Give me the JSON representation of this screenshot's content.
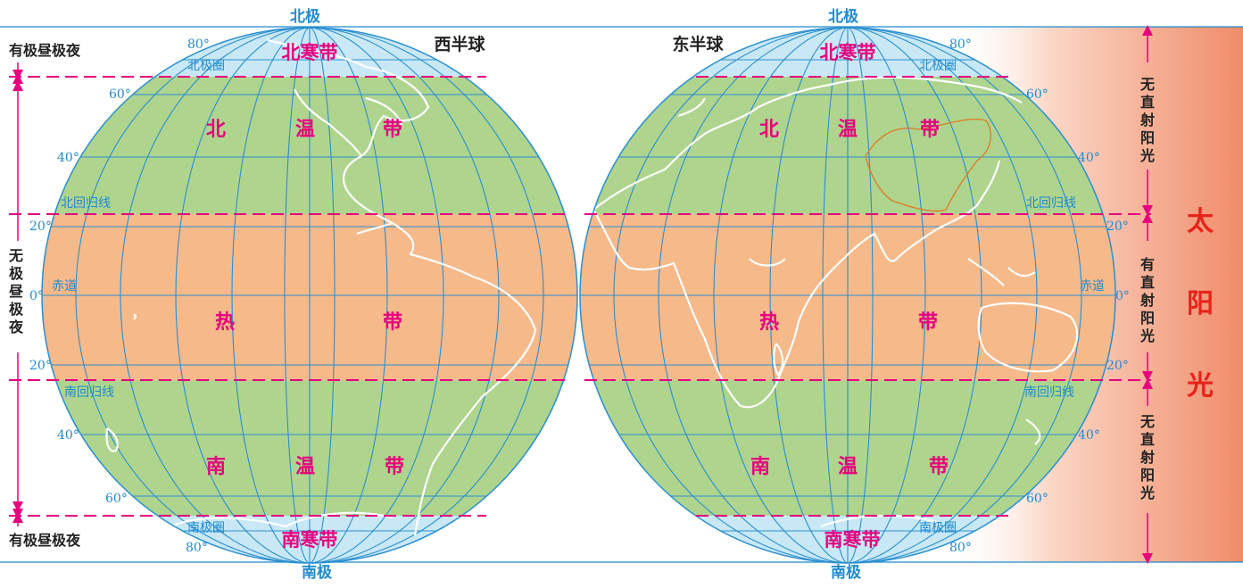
{
  "poles": {
    "north": "北极",
    "south": "南极"
  },
  "hemispheres": {
    "west": "西半球",
    "east": "东半球"
  },
  "zones": {
    "north_frigid": "北寒带",
    "south_frigid": "南寒带",
    "north_temperate_chars": [
      "北",
      "温",
      "带"
    ],
    "tropical_chars": [
      "热",
      "带"
    ],
    "south_temperate_chars": [
      "南",
      "温",
      "带"
    ]
  },
  "latitudes": {
    "l80": "80°",
    "l60": "60°",
    "l40": "40°",
    "l20": "20°",
    "l0": "0°"
  },
  "circles": {
    "arctic": "北极圈",
    "tropic_cancer": "北回归线",
    "equator": "赤道",
    "tropic_capricorn": "南回归线",
    "antarctic": "南极圈"
  },
  "left_side": {
    "polar_top": "有极昼极夜",
    "polar_bottom": "有极昼极夜",
    "no_polar_chars": [
      "无",
      "极",
      "昼",
      "极",
      "夜"
    ]
  },
  "right_side": {
    "no_direct_chars": [
      "无",
      "直",
      "射",
      "阳",
      "光"
    ],
    "direct_chars": [
      "有",
      "直",
      "射",
      "阳",
      "光"
    ]
  },
  "sunlight": {
    "chars": [
      "太",
      "阳",
      "光"
    ]
  },
  "colors": {
    "frigid_zone": "#c9e8f6",
    "temperate_zone": "#aed48e",
    "tropical_zone": "#f6b98a",
    "zone_label": "#e6007e",
    "grid_line": "#2a8fd0",
    "sunlight": "#e8231a"
  }
}
